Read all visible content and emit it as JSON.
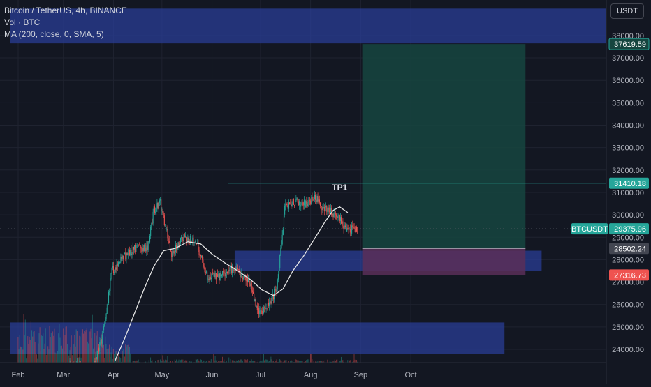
{
  "legend": {
    "line1": "Bitcoin / TetherUS, 4h, BINANCE",
    "line2": "Vol · BTC",
    "line3": "MA (200, close, 0, SMA, 5)"
  },
  "unit_button": "USDT",
  "colors": {
    "background": "#131722",
    "grid": "#1f2330",
    "candle_up": "#26a69a",
    "candle_down": "#ef5350",
    "ma_line": "#e6e6e6",
    "zone_blue": "#2a3f9a",
    "target_fill": "#16453f",
    "stop_fill": "#5a2f58",
    "tp_line": "#26a69a"
  },
  "chart_data": {
    "type": "candlestick",
    "symbol": "BTCUSDT",
    "timeframe": "4h",
    "ylim": [
      23500,
      38500
    ],
    "x_ticks": [
      "Feb",
      "Mar",
      "Apr",
      "May",
      "Jun",
      "Jul",
      "Aug",
      "Sep",
      "Oct"
    ],
    "y_ticks": [
      "24000.00",
      "25000.00",
      "26000.00",
      "27000.00",
      "28000.00",
      "29000.00",
      "30000.00",
      "31000.00",
      "32000.00",
      "33000.00",
      "34000.00",
      "35000.00",
      "36000.00",
      "37000.00",
      "38000.00"
    ],
    "price_path_daily": [
      {
        "day": 28,
        "price": 23200
      },
      {
        "day": 38,
        "price": 23300
      },
      {
        "day": 45,
        "price": 22800
      },
      {
        "day": 52,
        "price": 24500
      },
      {
        "day": 58,
        "price": 27500
      },
      {
        "day": 66,
        "price": 28200
      },
      {
        "day": 73,
        "price": 28500
      },
      {
        "day": 80,
        "price": 28500
      },
      {
        "day": 84,
        "price": 30200
      },
      {
        "day": 88,
        "price": 30500
      },
      {
        "day": 95,
        "price": 28200
      },
      {
        "day": 102,
        "price": 29000
      },
      {
        "day": 110,
        "price": 28800
      },
      {
        "day": 117,
        "price": 27300
      },
      {
        "day": 124,
        "price": 27200
      },
      {
        "day": 131,
        "price": 27600
      },
      {
        "day": 138,
        "price": 27400
      },
      {
        "day": 144,
        "price": 26800
      },
      {
        "day": 149,
        "price": 25600
      },
      {
        "day": 155,
        "price": 26000
      },
      {
        "day": 160,
        "price": 26700
      },
      {
        "day": 165,
        "price": 30300
      },
      {
        "day": 170,
        "price": 30600
      },
      {
        "day": 177,
        "price": 30500
      },
      {
        "day": 184,
        "price": 30800
      },
      {
        "day": 189,
        "price": 30300
      },
      {
        "day": 194,
        "price": 30100
      },
      {
        "day": 199,
        "price": 29800
      },
      {
        "day": 203,
        "price": 29300
      },
      {
        "day": 210,
        "price": 29380
      }
    ],
    "ma_200": [
      {
        "day": 60,
        "price": 23500
      },
      {
        "day": 66,
        "price": 24500
      },
      {
        "day": 72,
        "price": 25600
      },
      {
        "day": 78,
        "price": 26700
      },
      {
        "day": 84,
        "price": 27700
      },
      {
        "day": 90,
        "price": 28400
      },
      {
        "day": 97,
        "price": 28500
      },
      {
        "day": 105,
        "price": 28800
      },
      {
        "day": 113,
        "price": 28700
      },
      {
        "day": 120,
        "price": 28250
      },
      {
        "day": 128,
        "price": 27850
      },
      {
        "day": 136,
        "price": 27500
      },
      {
        "day": 144,
        "price": 27100
      },
      {
        "day": 151,
        "price": 26650
      },
      {
        "day": 158,
        "price": 26400
      },
      {
        "day": 164,
        "price": 26700
      },
      {
        "day": 170,
        "price": 27500
      },
      {
        "day": 177,
        "price": 28200
      },
      {
        "day": 184,
        "price": 29000
      },
      {
        "day": 190,
        "price": 29700
      },
      {
        "day": 195,
        "price": 30200
      },
      {
        "day": 199,
        "price": 30350
      },
      {
        "day": 204,
        "price": 30100
      }
    ],
    "zones": [
      {
        "name": "zone-top",
        "start_day": -5,
        "end_day": 365,
        "low": 37650,
        "high": 39200
      },
      {
        "name": "zone-mid",
        "start_day": 134,
        "end_day": 324,
        "low": 27500,
        "high": 28400
      },
      {
        "name": "zone-low",
        "start_day": -5,
        "end_day": 301,
        "low": 23800,
        "high": 25200
      }
    ],
    "position": {
      "start_day": 213,
      "end_day": 314,
      "entry": 28502.24,
      "target": 37619.59,
      "stop": 27316.73
    },
    "tp_line": {
      "label": "TP1",
      "price": 31410.18,
      "start_day": 130,
      "label_day": 199
    },
    "price_labels": {
      "target": "37619.59",
      "tp1": "31410.18",
      "current_symbol": "BTCUSDT",
      "current": "29375.96",
      "entry": "28502.24",
      "stop": "27316.73"
    },
    "current_price": 29375.96
  }
}
